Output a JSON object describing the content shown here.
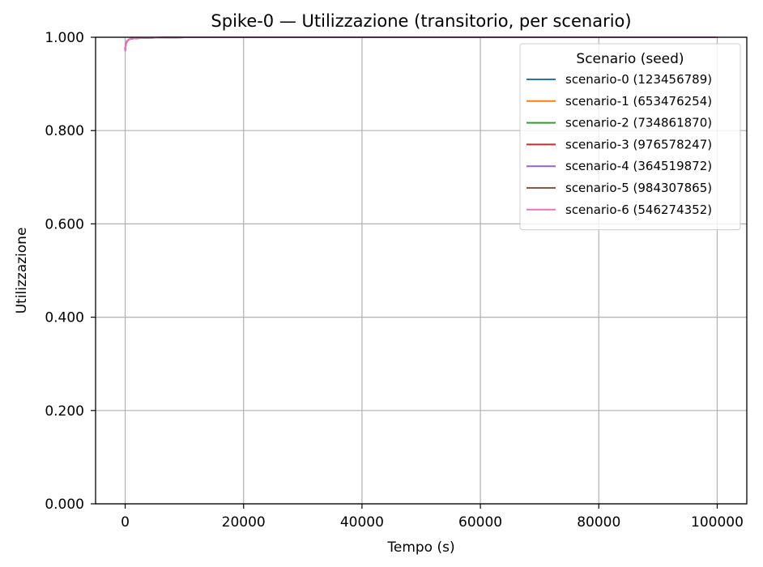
{
  "chart_data": {
    "type": "line",
    "title": "Spike-0 — Utilizzazione (transitorio, per scenario)",
    "xlabel": "Tempo (s)",
    "ylabel": "Utilizzazione",
    "xlim": [
      -5000,
      105000
    ],
    "ylim": [
      0.0,
      1.0
    ],
    "xticks": [
      0,
      20000,
      40000,
      60000,
      80000,
      100000
    ],
    "xtick_labels": [
      "0",
      "20000",
      "40000",
      "60000",
      "80000",
      "100000"
    ],
    "yticks": [
      0.0,
      0.2,
      0.4,
      0.6,
      0.8,
      1.0
    ],
    "ytick_labels": [
      "0.000",
      "0.200",
      "0.400",
      "0.600",
      "0.800",
      "1.000"
    ],
    "grid": true,
    "legend": {
      "title": "Scenario (seed)",
      "placement": "top-right"
    },
    "series": [
      {
        "name": "scenario-0 (123456789)",
        "color": "#1f77b4",
        "x": [
          0,
          100,
          300,
          600,
          1000,
          2000,
          4000,
          10000,
          50000,
          100000
        ],
        "y": [
          0.97,
          0.985,
          0.992,
          0.995,
          0.997,
          0.998,
          0.999,
          1.0,
          1.0,
          1.0
        ]
      },
      {
        "name": "scenario-1 (653476254)",
        "color": "#ff7f0e",
        "x": [
          0,
          100,
          300,
          600,
          1000,
          2000,
          4000,
          10000,
          50000,
          100000
        ],
        "y": [
          0.975,
          0.986,
          0.992,
          0.995,
          0.997,
          0.998,
          0.999,
          1.0,
          1.0,
          1.0
        ]
      },
      {
        "name": "scenario-2 (734861870)",
        "color": "#2ca02c",
        "x": [
          0,
          100,
          300,
          600,
          1000,
          2000,
          4000,
          10000,
          50000,
          100000
        ],
        "y": [
          0.972,
          0.985,
          0.991,
          0.995,
          0.997,
          0.998,
          0.999,
          1.0,
          1.0,
          1.0
        ]
      },
      {
        "name": "scenario-3 (976578247)",
        "color": "#d62728",
        "x": [
          0,
          100,
          300,
          600,
          1000,
          2000,
          4000,
          10000,
          50000,
          100000
        ],
        "y": [
          0.97,
          0.984,
          0.991,
          0.995,
          0.997,
          0.998,
          0.999,
          1.0,
          1.0,
          1.0
        ]
      },
      {
        "name": "scenario-4 (364519872)",
        "color": "#9467bd",
        "x": [
          0,
          100,
          300,
          600,
          1000,
          2000,
          4000,
          10000,
          50000,
          100000
        ],
        "y": [
          0.974,
          0.986,
          0.992,
          0.995,
          0.997,
          0.998,
          0.999,
          1.0,
          1.0,
          1.0
        ]
      },
      {
        "name": "scenario-5 (984307865)",
        "color": "#8c564b",
        "x": [
          0,
          100,
          300,
          600,
          1000,
          2000,
          4000,
          10000,
          50000,
          100000
        ],
        "y": [
          0.973,
          0.985,
          0.992,
          0.995,
          0.997,
          0.998,
          0.999,
          1.0,
          1.0,
          1.0
        ]
      },
      {
        "name": "scenario-6 (546274352)",
        "color": "#e377c2",
        "x": [
          0,
          100,
          300,
          600,
          1000,
          2000,
          4000,
          10000,
          50000,
          100000
        ],
        "y": [
          0.97,
          0.985,
          0.992,
          0.995,
          0.997,
          0.998,
          0.999,
          1.0,
          1.0,
          1.0
        ]
      }
    ]
  }
}
